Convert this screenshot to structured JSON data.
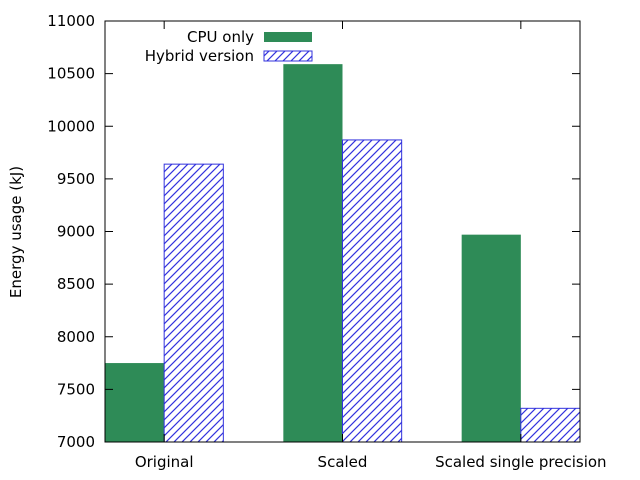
{
  "chart_data": {
    "type": "bar",
    "title": "",
    "xlabel": "",
    "ylabel": "Energy usage (kJ)",
    "ylim": [
      7000,
      11000
    ],
    "yticks": [
      7000,
      7500,
      8000,
      8500,
      9000,
      9500,
      10000,
      10500,
      11000
    ],
    "grid": false,
    "legend_position": "top-left",
    "categories": [
      "Original",
      "Scaled",
      "Scaled single precision"
    ],
    "series": [
      {
        "name": "CPU only",
        "values": [
          7750,
          10590,
          8970
        ],
        "color": "#2e8b57",
        "fill": "solid"
      },
      {
        "name": "Hybrid version",
        "values": [
          9640,
          9870,
          7320
        ],
        "color": "#3333dd",
        "fill": "hatched"
      }
    ]
  }
}
